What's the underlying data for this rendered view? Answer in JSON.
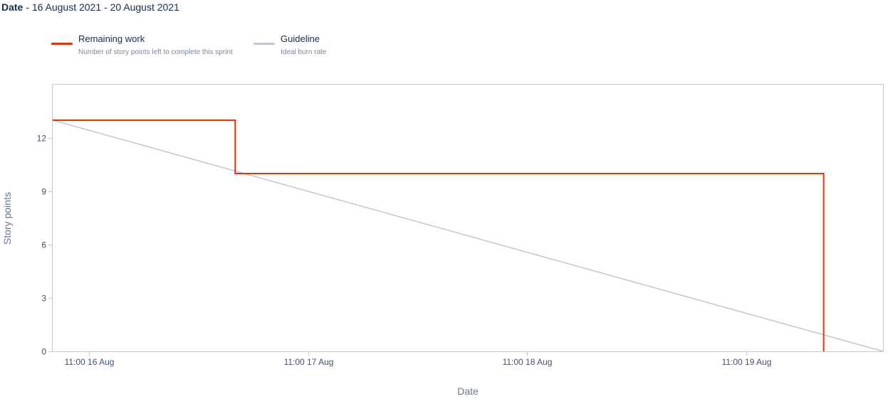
{
  "header": {
    "date_label": "Date",
    "date_separator": " - ",
    "date_range": "16 August 2021 - 20 August 2021"
  },
  "legend": [
    {
      "title": "Remaining work",
      "subtitle": "Number of story points left to complete this sprint",
      "color": "#de350b"
    },
    {
      "title": "Guideline",
      "subtitle": "Ideal burn rate",
      "color": "#c1c7d0"
    }
  ],
  "chart_data": {
    "type": "line",
    "title": "",
    "xlabel": "Date",
    "ylabel": "Story points",
    "x_range": [
      "2021-08-16 07:00",
      "2021-08-20 02:00"
    ],
    "ylim": [
      0,
      15
    ],
    "y_ticks": [
      0,
      3,
      6,
      9,
      12
    ],
    "x_ticks": [
      {
        "at": "2021-08-16 11:00",
        "label": "11:00 16 Aug"
      },
      {
        "at": "2021-08-17 11:00",
        "label": "11:00 17 Aug"
      },
      {
        "at": "2021-08-18 11:00",
        "label": "11:00 18 Aug"
      },
      {
        "at": "2021-08-19 11:00",
        "label": "11:00 19 Aug"
      }
    ],
    "grid": false,
    "legend_position": "top-left",
    "series": [
      {
        "name": "Remaining work",
        "style": "step",
        "color": "#de350b",
        "points": [
          {
            "x": "2021-08-16 07:00",
            "y": 13
          },
          {
            "x": "2021-08-17 03:00",
            "y": 13
          },
          {
            "x": "2021-08-17 03:00",
            "y": 10
          },
          {
            "x": "2021-08-19 19:30",
            "y": 10
          },
          {
            "x": "2021-08-19 19:30",
            "y": 0
          }
        ]
      },
      {
        "name": "Guideline",
        "style": "line",
        "color": "#c1c7d0",
        "points": [
          {
            "x": "2021-08-16 07:00",
            "y": 13
          },
          {
            "x": "2021-08-20 02:00",
            "y": 0
          }
        ]
      }
    ]
  }
}
